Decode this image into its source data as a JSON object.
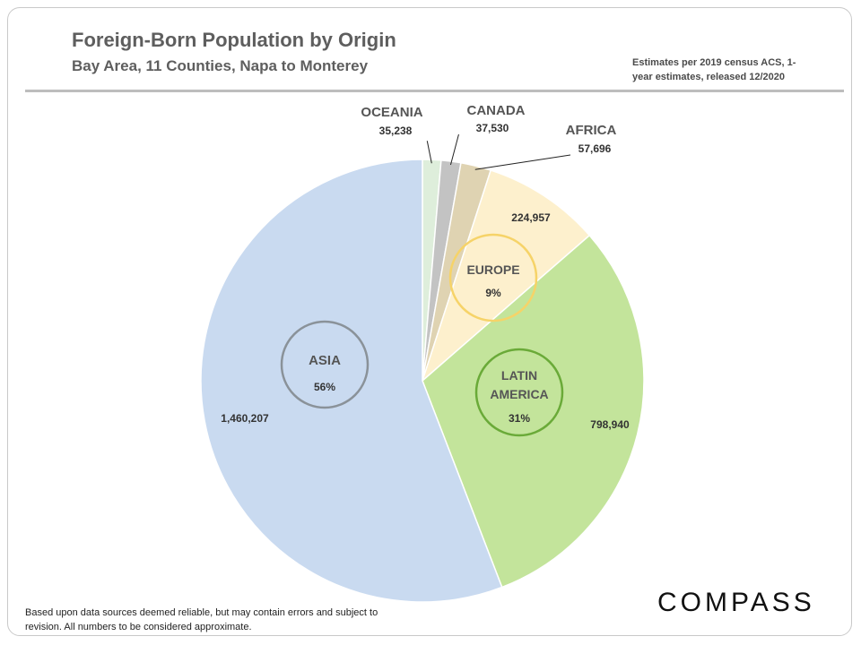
{
  "header": {
    "title": "Foreign-Born Population by Origin",
    "subtitle": "Bay Area, 11 Counties, Napa to Monterey",
    "note": "Estimates per 2019 census ACS, 1-year estimates, released 12/2020"
  },
  "footer": {
    "disclaimer": "Based upon data sources deemed reliable, but may contain errors and  subject to revision. All numbers to be considered approximate.",
    "brand": "COMPASS"
  },
  "chart_data": {
    "type": "pie",
    "title": "Foreign-Born Population by Origin",
    "start": "12 o'clock, clockwise",
    "slices": [
      {
        "key": "oceania",
        "label": "OCEANIA",
        "value": 35238,
        "value_label": "35,238",
        "color": "#deeedb"
      },
      {
        "key": "canada",
        "label": "CANADA",
        "value": 37530,
        "value_label": "37,530",
        "color": "#c3c3c3"
      },
      {
        "key": "africa",
        "label": "AFRICA",
        "value": 57696,
        "value_label": "57,696",
        "color": "#dfd3b2"
      },
      {
        "key": "europe",
        "label": "EUROPE",
        "value": 224957,
        "value_label": "224,957",
        "pct_label": "9%",
        "color": "#fdf0cd",
        "ring": "#f6d368"
      },
      {
        "key": "latin",
        "label": "LATIN AMERICA",
        "label_lines": [
          "LATIN",
          "AMERICA"
        ],
        "value": 798940,
        "value_label": "798,940",
        "pct_label": "31%",
        "color": "#c3e49b",
        "ring": "#6aaa38"
      },
      {
        "key": "asia",
        "label": "ASIA",
        "value": 1460207,
        "value_label": "1,460,207",
        "pct_label": "56%",
        "color": "#c9daf0",
        "ring": "#8a9299"
      }
    ]
  }
}
